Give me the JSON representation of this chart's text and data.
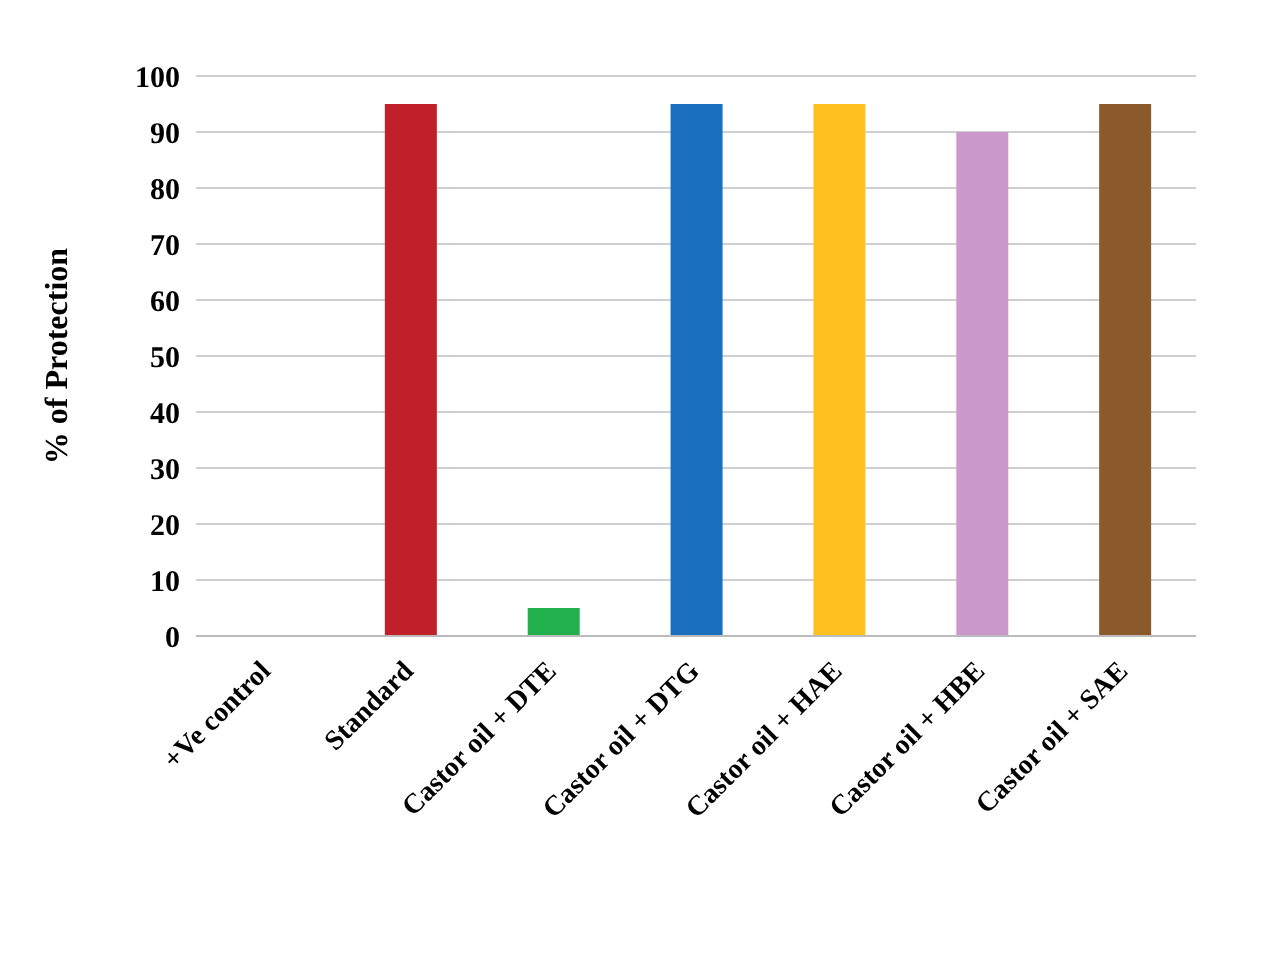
{
  "chart_data": {
    "type": "bar",
    "ylabel": "% of Protection",
    "categories": [
      "+Ve control",
      "Standard",
      "Castor oil + DTE",
      "Castor oil + DTG",
      "Castor oil + HAE",
      "Castor oil + HBE",
      "Castor oil + SAE"
    ],
    "values": [
      0,
      95,
      5,
      95,
      95,
      90,
      95
    ],
    "colors": [
      "#5b2d8e",
      "#c0202a",
      "#22b04c",
      "#1a6fbf",
      "#ffc020",
      "#cc99cc",
      "#8b5a2b"
    ],
    "ylim": [
      0,
      100
    ],
    "yticks": [
      0,
      10,
      20,
      30,
      40,
      50,
      60,
      70,
      80,
      90,
      100
    ],
    "grid": "y"
  }
}
